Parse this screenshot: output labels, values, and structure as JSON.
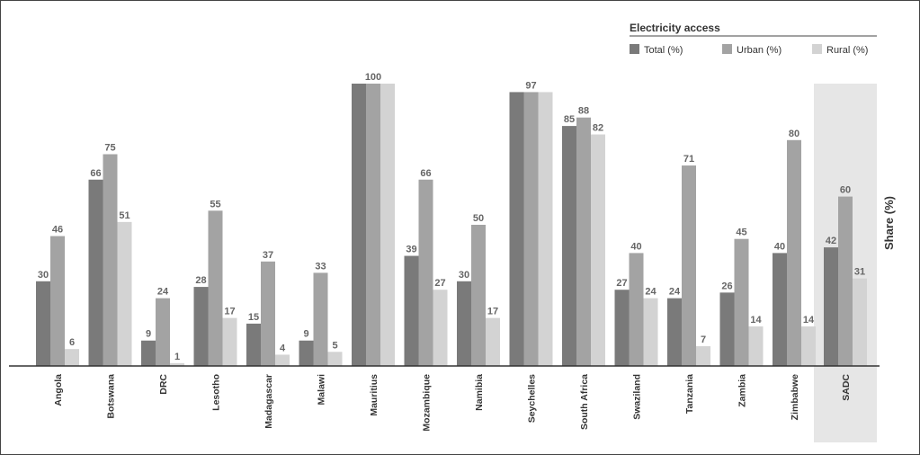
{
  "chart_data": {
    "type": "bar",
    "title": "",
    "legend_title": "Electricity access",
    "ylabel": "Share (%)",
    "ylim": [
      0,
      100
    ],
    "legend_position": "top-right",
    "grid": false,
    "categories": [
      "Angola",
      "Botswana",
      "DRC",
      "Lesotho",
      "Madagascar",
      "Malawi",
      "Mauritius",
      "Mozambique",
      "Namibia",
      "Seychelles",
      "South Africa",
      "Swaziland",
      "Tanzania",
      "Zambia",
      "Zimbabwe",
      "SADC"
    ],
    "highlighted_category": "SADC",
    "series": [
      {
        "name": "Total (%)",
        "color": "#7a7a7a",
        "values": [
          30,
          66,
          9,
          28,
          15,
          9,
          100,
          39,
          30,
          97,
          85,
          27,
          24,
          26,
          40,
          42
        ],
        "labels": [
          "30",
          "66",
          "9",
          "28",
          "15",
          "9",
          "",
          "39",
          "30",
          "",
          "85",
          "27",
          "24",
          "26",
          "40",
          "42"
        ]
      },
      {
        "name": "Urban (%)",
        "color": "#a3a3a3",
        "values": [
          46,
          75,
          24,
          55,
          37,
          33,
          100,
          66,
          50,
          97,
          88,
          40,
          71,
          45,
          80,
          60
        ],
        "labels": [
          "46",
          "75",
          "24",
          "55",
          "37",
          "33",
          "100",
          "66",
          "50",
          "97",
          "88",
          "40",
          "71",
          "45",
          "80",
          "60"
        ]
      },
      {
        "name": "Rural (%)",
        "color": "#d3d3d3",
        "values": [
          6,
          51,
          1,
          17,
          4,
          5,
          100,
          27,
          17,
          97,
          82,
          24,
          7,
          14,
          14,
          31
        ],
        "labels": [
          "6",
          "51",
          "1",
          "17",
          "4",
          "5",
          "",
          "27",
          "17",
          "",
          "82",
          "24",
          "7",
          "14",
          "14",
          "31"
        ]
      }
    ]
  }
}
